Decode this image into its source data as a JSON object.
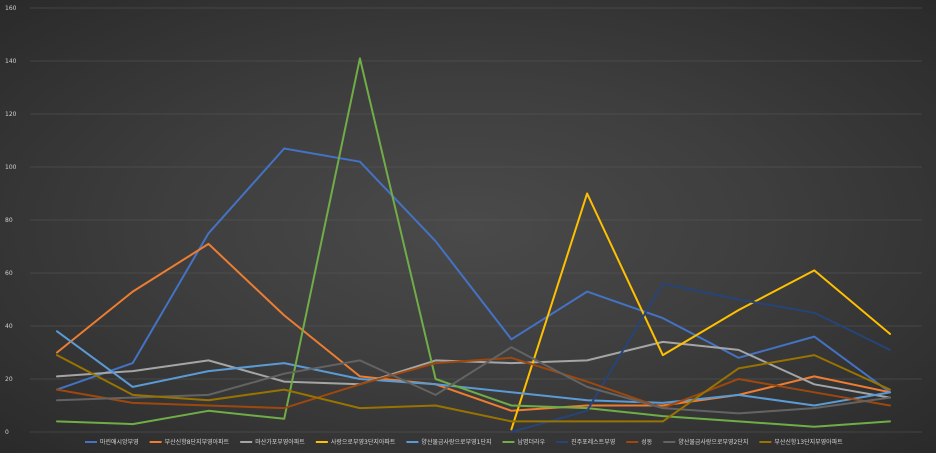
{
  "chart_data": {
    "type": "line",
    "title": "",
    "xlabel": "",
    "ylabel": "",
    "ylim": [
      0,
      160
    ],
    "yticks": [
      "0",
      "20",
      "40",
      "60",
      "80",
      "100",
      "120",
      "140",
      "160"
    ],
    "grid": true,
    "legend_position": "bottom",
    "x": [
      1,
      2,
      3,
      4,
      5,
      6,
      7,
      8,
      9,
      10,
      11,
      12
    ],
    "series": [
      {
        "name": "마린애시앙부영",
        "color": "#4472c4",
        "values": [
          16,
          26,
          75,
          107,
          102,
          72,
          35,
          53,
          43,
          28,
          36,
          15
        ]
      },
      {
        "name": "부산신항8단지부영아파트",
        "color": "#ed7d31",
        "values": [
          30,
          53,
          71,
          44,
          21,
          18,
          8,
          10,
          10,
          14,
          21,
          15
        ]
      },
      {
        "name": "마산가포부영아파트",
        "color": "#a5a5a5",
        "values": [
          21,
          23,
          27,
          19,
          18,
          27,
          26,
          27,
          34,
          31,
          18,
          13
        ]
      },
      {
        "name": "사랑으로부영3단지아파트",
        "color": "#ffc000",
        "values": [
          null,
          null,
          null,
          null,
          null,
          null,
          1,
          90,
          29,
          46,
          61,
          37
        ]
      },
      {
        "name": "양산물금사랑으로부영1단지",
        "color": "#5b9bd5",
        "values": [
          38,
          17,
          23,
          26,
          20,
          18,
          15,
          12,
          11,
          14,
          10,
          15
        ]
      },
      {
        "name": "남명더라우",
        "color": "#70ad47",
        "values": [
          4,
          3,
          8,
          5,
          141,
          20,
          10,
          9,
          6,
          4,
          2,
          4
        ]
      },
      {
        "name": "진주포레스트부영",
        "color": "#264478",
        "values": [
          null,
          null,
          null,
          null,
          null,
          null,
          0,
          8,
          56,
          50,
          45,
          31
        ]
      },
      {
        "name": "성동",
        "color": "#9e480e",
        "values": [
          16,
          11,
          10,
          9,
          18,
          26,
          28,
          19,
          9,
          20,
          15,
          10
        ]
      },
      {
        "name": "양산물금사랑으로부영2단지",
        "color": "#636363",
        "values": [
          12,
          13,
          14,
          22,
          27,
          14,
          32,
          17,
          9,
          7,
          9,
          13
        ]
      },
      {
        "name": "부산신항13단지부영아파트",
        "color": "#997300",
        "values": [
          29,
          14,
          12,
          16,
          9,
          10,
          4,
          4,
          4,
          24,
          29,
          16
        ]
      }
    ]
  }
}
